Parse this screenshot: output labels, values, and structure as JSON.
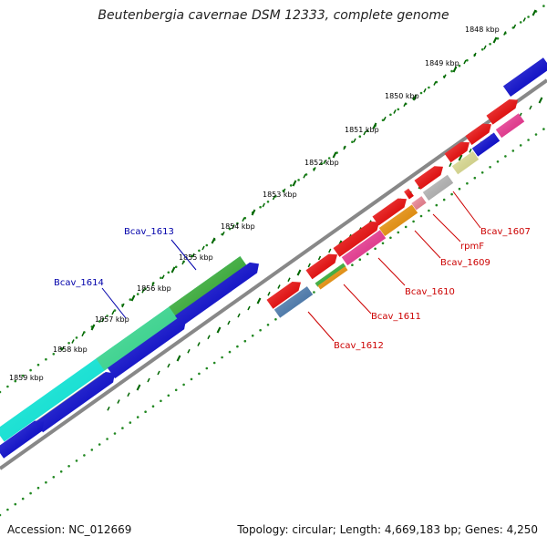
{
  "title": "Beutenbergia cavernae DSM 12333, complete genome",
  "footer": {
    "accession": "Accession: NC_012669",
    "stats": "Topology: circular; Length: 4,669,183 bp; Genes: 4,250"
  },
  "kbp_labels": [
    "1848 kbp",
    "1849 kbp",
    "1850 kbp",
    "1851 kbp",
    "1852 kbp",
    "1853 kbp",
    "1854 kbp",
    "1855 kbp",
    "1856 kbp",
    "1857 kbp",
    "1858 kbp",
    "1859 kbp"
  ],
  "gene_labels": {
    "bcav_1607": "Bcav_1607",
    "rpmf": "rpmF",
    "bcav_1609": "Bcav_1609",
    "bcav_1610": "Bcav_1610",
    "bcav_1611": "Bcav_1611",
    "bcav_1612": "Bcav_1612",
    "bcav_1613": "Bcav_1613",
    "bcav_1614": "Bcav_1614"
  },
  "colors": {
    "red": "#ff0000",
    "blue": "#0000e0",
    "green": "#33bb33",
    "cyan": "#00ffee",
    "teal": "#33ee99",
    "khaki": "#bfb890",
    "steelblue": "#4a80bb",
    "orange": "#ff9900",
    "magenta": "#ff3399",
    "pink": "#ff8899",
    "grey": "#c0c0c0",
    "yellow": "#eeee99",
    "label_red": "#cc0000",
    "label_blue": "#0000aa",
    "backbone": "#888888",
    "tick_green": "#006600"
  }
}
